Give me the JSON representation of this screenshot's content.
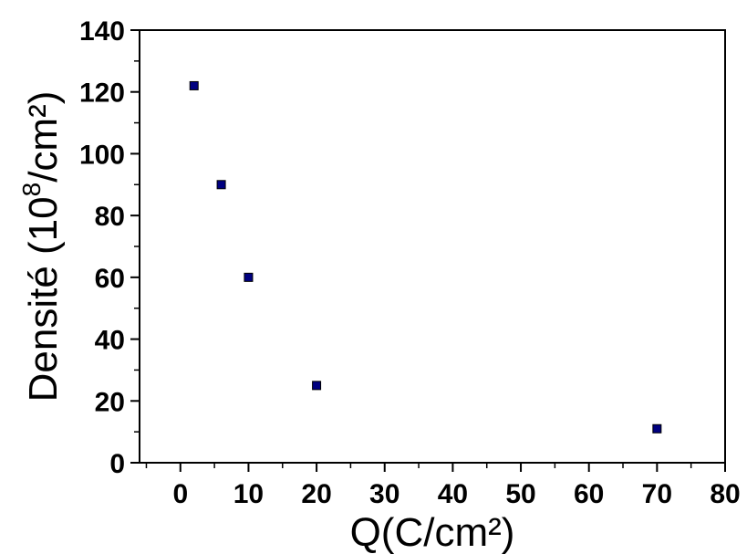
{
  "chart_data": {
    "type": "scatter",
    "title": "",
    "xlabel": "Q(C/cm²)",
    "ylabel": {
      "text": "Densité (10",
      "superscript": "8",
      "suffix": "/cm²)"
    },
    "xlim": [
      -6,
      80
    ],
    "ylim": [
      0,
      140
    ],
    "x_ticks": [
      0,
      10,
      20,
      30,
      40,
      50,
      60,
      70,
      80
    ],
    "y_ticks": [
      0,
      20,
      40,
      60,
      80,
      100,
      120,
      140
    ],
    "grid": false,
    "legend": "none",
    "marker": "square",
    "marker_color": "#000080",
    "series": [
      {
        "x": [
          2,
          6,
          10,
          20,
          70
        ],
        "y": [
          122,
          90,
          60,
          25,
          11
        ]
      }
    ]
  }
}
